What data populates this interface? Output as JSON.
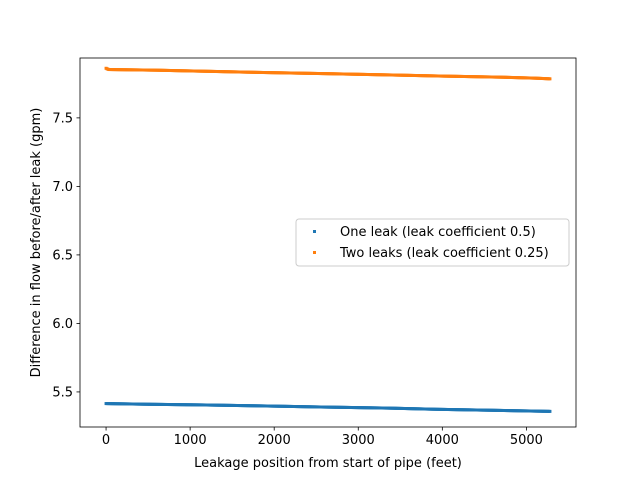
{
  "chart_data": {
    "type": "scatter",
    "title": "",
    "xlabel": "Leakage position from start of pipe (feet)",
    "ylabel": "Difference in flow before/after leak (gpm)",
    "xlim": [
      -310,
      5590
    ],
    "ylim": [
      5.244,
      7.937
    ],
    "xticks": [
      0,
      1000,
      2000,
      3000,
      4000,
      5000
    ],
    "xtick_labels": [
      "0",
      "1000",
      "2000",
      "3000",
      "4000",
      "5000"
    ],
    "yticks": [
      5.5,
      6.0,
      6.5,
      7.0,
      7.5
    ],
    "ytick_labels": [
      "5.5",
      "6.0",
      "6.5",
      "7.0",
      "7.5"
    ],
    "grid": false,
    "legend_position": "center-right",
    "series": [
      {
        "name": "One leak (leak coefficient 0.5)",
        "color": "#1f77b4",
        "x": [
          0,
          500,
          1150,
          1850,
          2550,
          3350,
          3950,
          4600,
          5280
        ],
        "y": [
          5.415,
          5.41,
          5.405,
          5.398,
          5.39,
          5.382,
          5.373,
          5.366,
          5.358
        ]
      },
      {
        "name": "Two leaks (leak coefficient 0.25)",
        "color": "#ff7f0e",
        "x": [
          0,
          30,
          600,
          1200,
          1800,
          2600,
          3400,
          4000,
          4700,
          5100,
          5280
        ],
        "y": [
          7.862,
          7.853,
          7.848,
          7.84,
          7.832,
          7.823,
          7.813,
          7.805,
          7.797,
          7.79,
          7.785
        ]
      }
    ]
  }
}
